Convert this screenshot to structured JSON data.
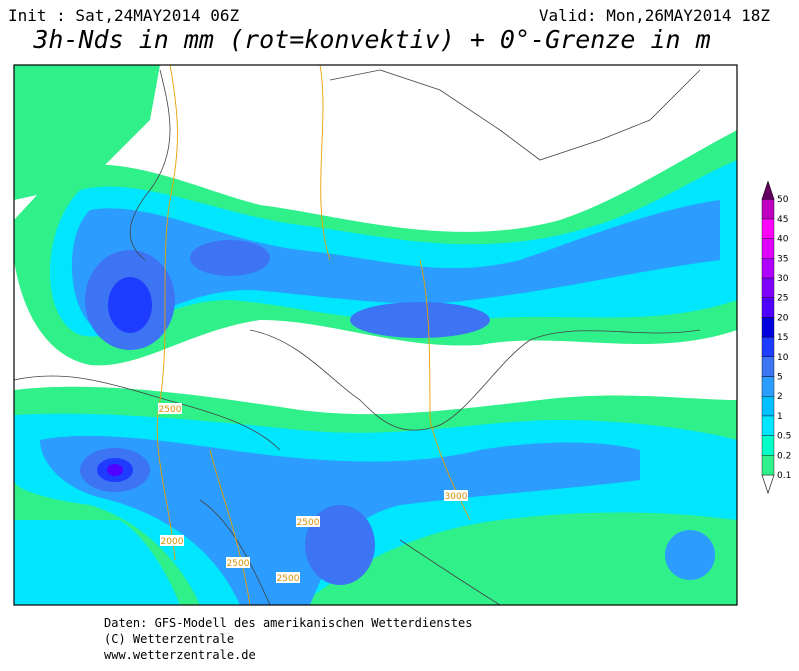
{
  "header": {
    "init": "Init : Sat,24MAY2014 06Z",
    "valid": "Valid: Mon,26MAY2014 18Z",
    "title": "3h-Nds in mm (rot=konvektiv) + 0°-Grenze in m"
  },
  "colorbar": {
    "levels": [
      0.1,
      0.2,
      0.5,
      1,
      2,
      5,
      10,
      15,
      20,
      25,
      30,
      35,
      40,
      45,
      50
    ],
    "colors": [
      "#30f08a",
      "#00ffc8",
      "#00e6ff",
      "#00c0ff",
      "#2c9cff",
      "#3c74f4",
      "#1e3cff",
      "#0000e0",
      "#5000ff",
      "#8000ff",
      "#b000ff",
      "#e000ff",
      "#ff00ff",
      "#c000c0",
      "#900090",
      "#600060"
    ]
  },
  "contour_labels": [
    "2500",
    "2000",
    "2500",
    "2500",
    "2500",
    "3000"
  ],
  "footer": [
    "Daten: GFS-Modell des amerikanischen Wetterdienstes",
    "(C) Wetterzentrale",
    "www.wetterzentrale.de"
  ]
}
